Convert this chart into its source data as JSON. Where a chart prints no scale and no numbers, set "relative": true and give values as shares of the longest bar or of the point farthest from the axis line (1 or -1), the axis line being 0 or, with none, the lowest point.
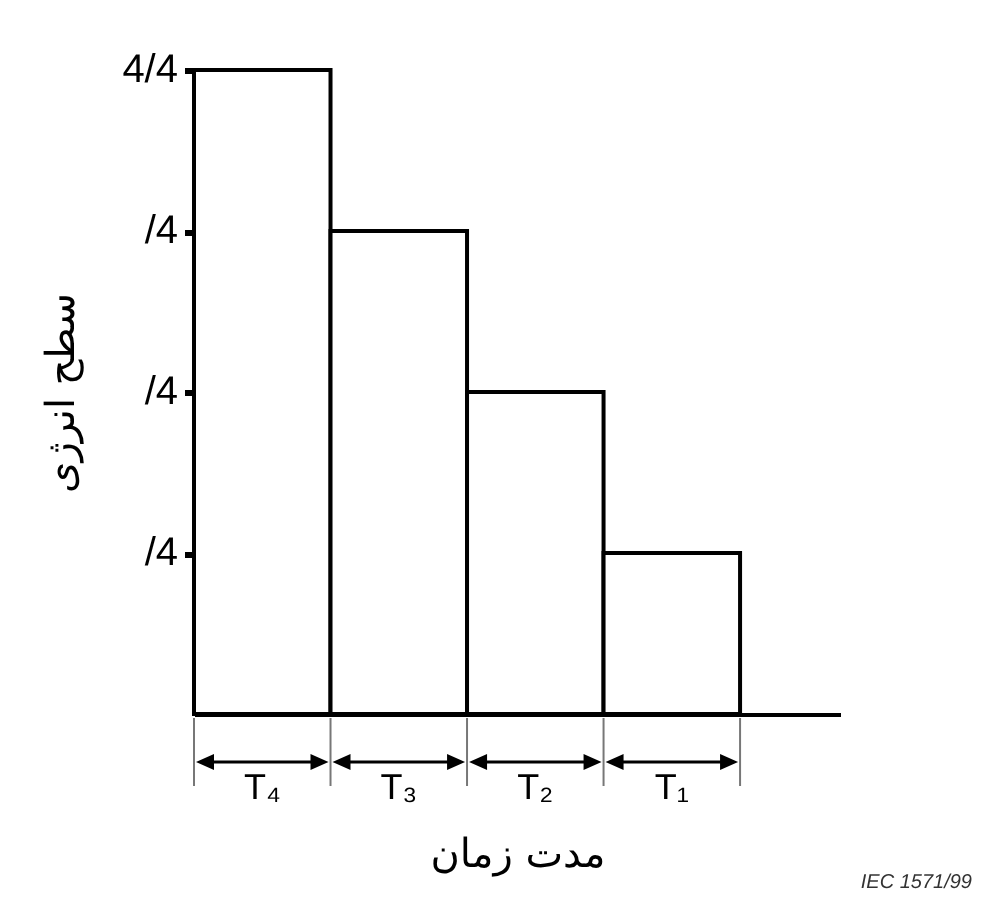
{
  "chart_data": {
    "type": "bar",
    "xlabel": "مدت زمان",
    "ylabel": "سطح انرژی",
    "categories": [
      "T₄",
      "T₃",
      "T₂",
      "T₁"
    ],
    "values": [
      1,
      0.75,
      0.5,
      0.25
    ],
    "relative": true,
    "color": "#ffffff",
    "annotations": [
      "4/4",
      "/4",
      "/4",
      "/4",
      "IEC 1571/99"
    ]
  }
}
